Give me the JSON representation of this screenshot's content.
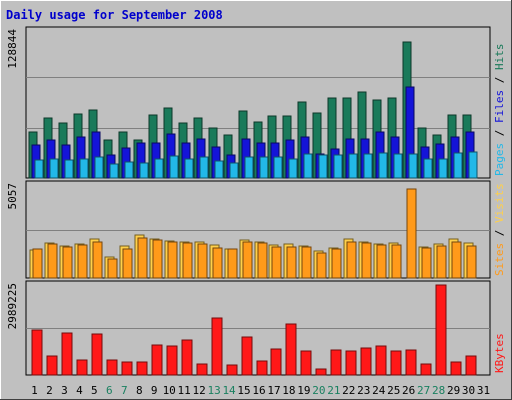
{
  "title": "Daily usage for September 2008",
  "chart_data": {
    "type": "bar",
    "categories": [
      "1",
      "2",
      "3",
      "4",
      "5",
      "6",
      "7",
      "8",
      "9",
      "10",
      "11",
      "12",
      "13",
      "14",
      "15",
      "16",
      "17",
      "18",
      "19",
      "20",
      "21",
      "22",
      "23",
      "24",
      "25",
      "26",
      "27",
      "28",
      "29",
      "30",
      "31"
    ],
    "weekend_days": [
      "6",
      "7",
      "13",
      "14",
      "20",
      "21",
      "27",
      "28"
    ],
    "panels": [
      {
        "name": "hits_files_pages",
        "ymax_label": "128844",
        "ymax": 128844,
        "right_label": [
          "Pages",
          " / ",
          "Files",
          " / ",
          "Hits"
        ],
        "series": [
          {
            "name": "Hits",
            "color": "#1a7a5a",
            "values": [
              40000,
              53000,
              48000,
              56000,
              60000,
              33000,
              40000,
              33000,
              55000,
              61000,
              48000,
              53000,
              44000,
              38000,
              59000,
              49000,
              54000,
              54000,
              67000,
              57000,
              70000,
              70000,
              75000,
              68000,
              70000,
              119000,
              44000,
              38000,
              55000,
              55000,
              0
            ]
          },
          {
            "name": "Files",
            "color": "#1414d8",
            "values": [
              29000,
              33000,
              29000,
              36000,
              40000,
              20000,
              26000,
              31000,
              31000,
              39000,
              31000,
              34000,
              27000,
              20000,
              34000,
              31000,
              31000,
              33000,
              36000,
              21000,
              25000,
              34000,
              34000,
              40000,
              36000,
              80000,
              27000,
              30000,
              36000,
              40000,
              0
            ]
          },
          {
            "name": "Pages",
            "color": "#22b8e8",
            "values": [
              16000,
              17000,
              16000,
              17000,
              18000,
              12000,
              14000,
              13000,
              17000,
              19000,
              17000,
              18000,
              15000,
              13000,
              18000,
              18000,
              18000,
              17000,
              21000,
              20000,
              20000,
              21000,
              21000,
              22000,
              21000,
              21000,
              17000,
              17000,
              22000,
              23000,
              0
            ]
          }
        ]
      },
      {
        "name": "sites_visits",
        "ymax_label": "5057",
        "ymax": 5057,
        "right_label": [
          "Sites",
          " / ",
          "Visits"
        ],
        "series": [
          {
            "name": "Visits",
            "color": "#ffd04a",
            "values": [
              1500,
              1900,
              1750,
              1850,
              2100,
              1150,
              1750,
              2350,
              2100,
              2000,
              1950,
              1950,
              1800,
              1600,
              2050,
              1950,
              1800,
              1850,
              1750,
              1450,
              1650,
              2100,
              1950,
              1850,
              1900,
              0,
              1700,
              1850,
              2100,
              1900,
              0
            ]
          },
          {
            "name": "Sites",
            "color": "#ff9a1a",
            "values": [
              1550,
              1850,
              1700,
              1800,
              1950,
              1050,
              1600,
              2200,
              2050,
              1950,
              1900,
              1850,
              1650,
              1550,
              1950,
              1900,
              1700,
              1700,
              1700,
              1350,
              1600,
              1950,
              1900,
              1800,
              1800,
              4830,
              1650,
              1750,
              1950,
              1750,
              0
            ]
          }
        ]
      },
      {
        "name": "kbytes",
        "ymax_label": "2989225",
        "ymax": 2989225,
        "right_label": [
          "KBytes"
        ],
        "series": [
          {
            "name": "KBytes",
            "color": "#ff1818",
            "values": [
              1500000,
              640000,
              1400000,
              500000,
              1370000,
              500000,
              430000,
              440000,
              990000,
              970000,
              1160000,
              360000,
              1900000,
              330000,
              1250000,
              470000,
              860000,
              1700000,
              810000,
              200000,
              830000,
              810000,
              890000,
              970000,
              810000,
              820000,
              350000,
              2989225,
              440000,
              620000,
              0
            ]
          }
        ]
      }
    ]
  }
}
